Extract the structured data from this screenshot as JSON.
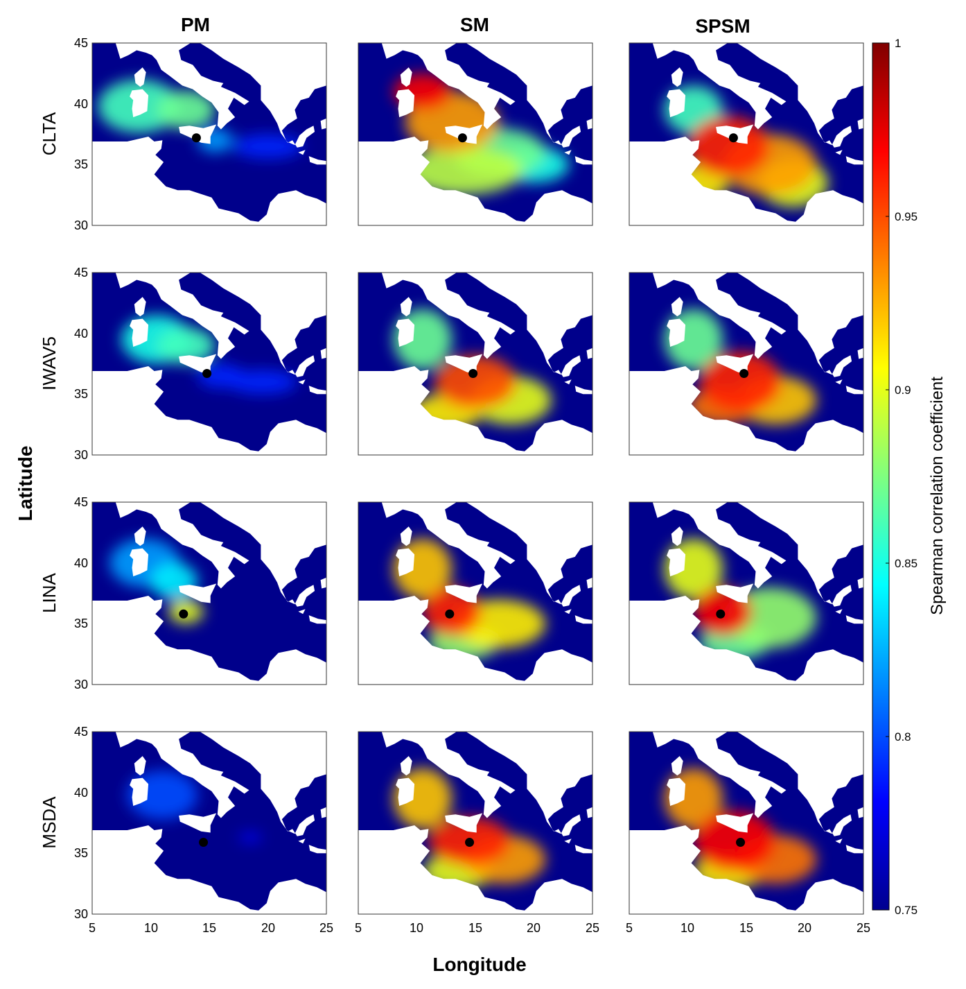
{
  "figure": {
    "columns": [
      "PM",
      "SM",
      "SPSM"
    ],
    "rows": [
      "CLTA",
      "IWAV5",
      "LINA",
      "MSDA"
    ],
    "xlabel": "Longitude",
    "ylabel": "Latitude",
    "colorbar_label": "Spearman correlation coefficient",
    "colorbar_ticks": [
      "1",
      "0.95",
      "0.9",
      "0.85",
      "0.8",
      "0.75"
    ],
    "colorbar_range": [
      0.75,
      1.0
    ],
    "colormap": "jet",
    "x_ticks": [
      "5",
      "10",
      "15",
      "20",
      "25"
    ],
    "y_ticks": [
      "45",
      "40",
      "35",
      "30"
    ],
    "lon_range": [
      5,
      25
    ],
    "lat_range": [
      30,
      45
    ],
    "colors": {
      "sea_background": "#00008b",
      "land": "#ffffff",
      "marker": "#000000"
    }
  },
  "chart_data": {
    "type": "heatmap",
    "value_name": "Spearman correlation coefficient",
    "panels": [
      {
        "row": "CLTA",
        "column": "PM",
        "station": {
          "lon": 13.9,
          "lat": 37.2
        },
        "peak_corr": 0.87
      },
      {
        "row": "CLTA",
        "column": "SM",
        "station": {
          "lon": 13.9,
          "lat": 37.2
        },
        "peak_corr": 0.97
      },
      {
        "row": "CLTA",
        "column": "SPSM",
        "station": {
          "lon": 13.9,
          "lat": 37.2
        },
        "peak_corr": 0.97
      },
      {
        "row": "IWAV5",
        "column": "PM",
        "station": {
          "lon": 14.8,
          "lat": 36.7
        },
        "peak_corr": 0.87
      },
      {
        "row": "IWAV5",
        "column": "SM",
        "station": {
          "lon": 14.8,
          "lat": 36.7
        },
        "peak_corr": 0.95
      },
      {
        "row": "IWAV5",
        "column": "SPSM",
        "station": {
          "lon": 14.8,
          "lat": 36.7
        },
        "peak_corr": 0.96
      },
      {
        "row": "LINA",
        "column": "PM",
        "station": {
          "lon": 12.8,
          "lat": 35.8
        },
        "peak_corr": 0.92
      },
      {
        "row": "LINA",
        "column": "SM",
        "station": {
          "lon": 12.8,
          "lat": 35.8
        },
        "peak_corr": 0.96
      },
      {
        "row": "LINA",
        "column": "SPSM",
        "station": {
          "lon": 12.8,
          "lat": 35.8
        },
        "peak_corr": 0.97
      },
      {
        "row": "MSDA",
        "column": "PM",
        "station": {
          "lon": 14.5,
          "lat": 35.9
        },
        "peak_corr": 0.8
      },
      {
        "row": "MSDA",
        "column": "SM",
        "station": {
          "lon": 14.5,
          "lat": 35.9
        },
        "peak_corr": 0.96
      },
      {
        "row": "MSDA",
        "column": "SPSM",
        "station": {
          "lon": 14.5,
          "lat": 35.9
        },
        "peak_corr": 0.97
      }
    ]
  }
}
